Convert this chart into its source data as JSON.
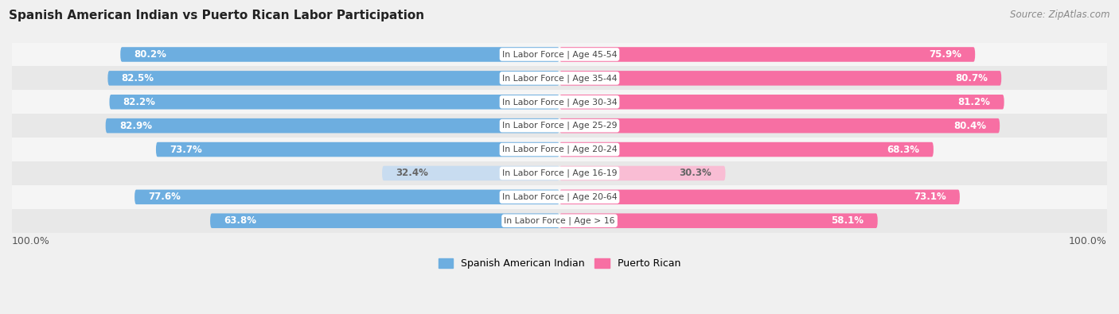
{
  "title": "Spanish American Indian vs Puerto Rican Labor Participation",
  "source": "Source: ZipAtlas.com",
  "categories": [
    "In Labor Force | Age > 16",
    "In Labor Force | Age 20-64",
    "In Labor Force | Age 16-19",
    "In Labor Force | Age 20-24",
    "In Labor Force | Age 25-29",
    "In Labor Force | Age 30-34",
    "In Labor Force | Age 35-44",
    "In Labor Force | Age 45-54"
  ],
  "spanish_values": [
    63.8,
    77.6,
    32.4,
    73.7,
    82.9,
    82.2,
    82.5,
    80.2
  ],
  "puerto_rican_values": [
    58.1,
    73.1,
    30.3,
    68.3,
    80.4,
    81.2,
    80.7,
    75.9
  ],
  "spanish_color": "#6daee0",
  "puerto_rican_color": "#f76fa3",
  "spanish_color_light": "#c8dcf0",
  "puerto_rican_color_light": "#f9bdd4",
  "background_color": "#f0f0f0",
  "row_color_dark": "#e8e8e8",
  "row_color_light": "#f5f5f5",
  "max_value": 100.0,
  "x_left_label": "100.0%",
  "x_right_label": "100.0%",
  "legend_spanish": "Spanish American Indian",
  "legend_puerto": "Puerto Rican"
}
